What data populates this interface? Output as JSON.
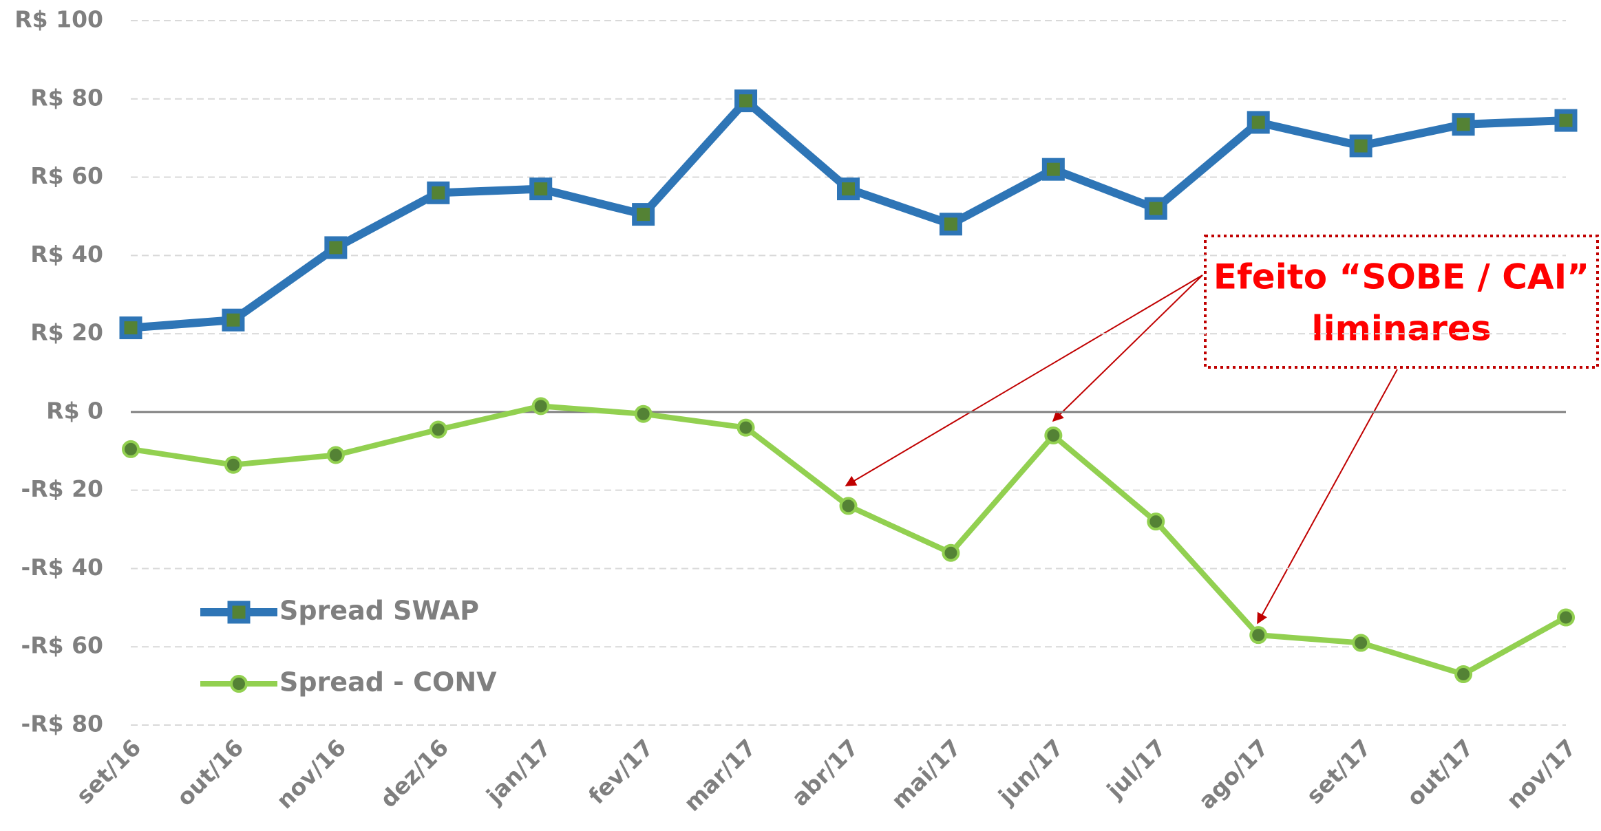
{
  "chart_data": {
    "type": "line",
    "categories": [
      "set/16",
      "out/16",
      "nov/16",
      "dez/16",
      "jan/17",
      "fev/17",
      "mar/17",
      "abr/17",
      "mai/17",
      "jun/17",
      "jul/17",
      "ago/17",
      "set/17",
      "out/17",
      "nov/17"
    ],
    "series": [
      {
        "name": "Spread SWAP",
        "color": "#2e75b6",
        "marker": "square",
        "marker_color": "#548235",
        "values": [
          21.5,
          23.5,
          42,
          56,
          57,
          50.5,
          79.5,
          57,
          48,
          62,
          52,
          74,
          68,
          73.5,
          74.5
        ]
      },
      {
        "name": "Spread - CONV",
        "color": "#92d050",
        "marker": "circle",
        "marker_color": "#548235",
        "values": [
          -9.5,
          -13.5,
          -11,
          -4.5,
          1.5,
          -0.5,
          -4,
          -24,
          -36,
          -6,
          -28,
          -57,
          -59,
          -67,
          -52.5
        ]
      }
    ],
    "ylim": [
      -80,
      100
    ],
    "yticks": [
      {
        "value": 100,
        "label": "R$ 100"
      },
      {
        "value": 80,
        "label": "R$ 80"
      },
      {
        "value": 60,
        "label": "R$ 60"
      },
      {
        "value": 40,
        "label": "R$ 40"
      },
      {
        "value": 20,
        "label": "R$ 20"
      },
      {
        "value": 0,
        "label": "R$ 0"
      },
      {
        "value": -20,
        "label": "-R$ 20"
      },
      {
        "value": -40,
        "label": "-R$ 40"
      },
      {
        "value": -60,
        "label": "-R$ 60"
      },
      {
        "value": -80,
        "label": "-R$ 80"
      }
    ],
    "grid": true,
    "legend": "lower left",
    "annotation": [
      "Efeito “SOBE / CAI”",
      "liminares"
    ]
  }
}
